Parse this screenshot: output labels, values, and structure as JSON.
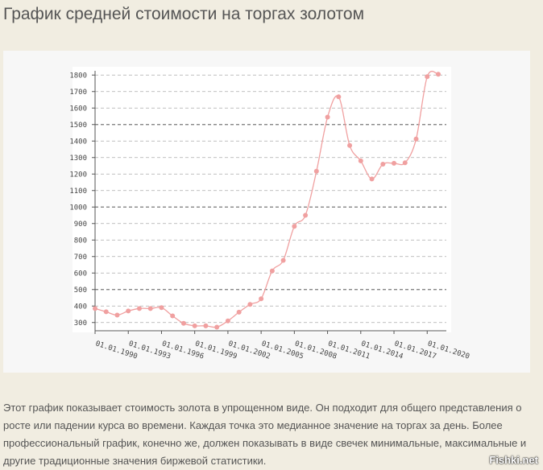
{
  "header": {
    "title": "График средней стоимости на торгах золотом"
  },
  "chart_data": {
    "type": "line",
    "categories": [
      "01.01.1990",
      null,
      null,
      "01.01.1993",
      null,
      null,
      "01.01.1996",
      null,
      null,
      "01.01.1999",
      null,
      null,
      "01.01.2002",
      null,
      null,
      "01.01.2005",
      null,
      null,
      "01.01.2008",
      null,
      null,
      "01.01.2011",
      null,
      null,
      "01.01.2014",
      null,
      null,
      "01.01.2017",
      null,
      null,
      "01.01.2020",
      null
    ],
    "values": [
      385,
      365,
      345,
      370,
      385,
      385,
      390,
      340,
      295,
      280,
      280,
      272,
      310,
      363,
      410,
      444,
      613,
      677,
      883,
      950,
      1217,
      1545,
      1668,
      1373,
      1280,
      1170,
      1260,
      1265,
      1268,
      1412,
      1790,
      1805
    ],
    "color": "#f0a0a0",
    "ylim": [
      250,
      1850
    ],
    "yticks": [
      300,
      400,
      500,
      600,
      700,
      800,
      900,
      1000,
      1100,
      1200,
      1300,
      1400,
      1500,
      1600,
      1700,
      1800
    ],
    "grid": true
  },
  "paragraph": "Этот график показывает стоимость золота в упрощенном виде. Он подходит для общего представления о росте или падении курса во времени. Каждая точка  это медианное значение на торгах за день. Более профессиональный график, конечно же, должен показывать в виде свечек минимальные, максимальные и другие традиционные значения биржевой статистики.",
  "watermark": "Fishki.net"
}
